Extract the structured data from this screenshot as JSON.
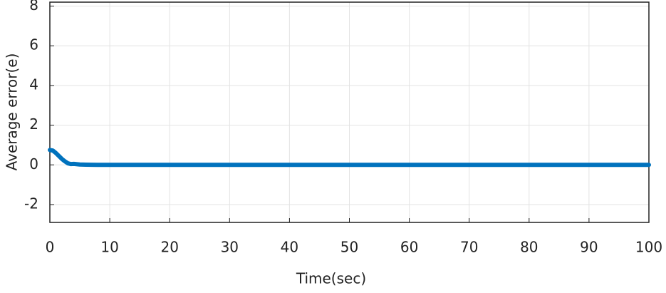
{
  "chart_data": {
    "type": "line",
    "x_label": "Time(sec)",
    "y_label": "Average error(e)",
    "x": [
      0,
      0.5,
      1,
      1.5,
      2,
      2.5,
      3,
      3.5,
      4,
      5,
      6,
      8,
      10,
      100
    ],
    "series": [
      {
        "color": "#0072bd",
        "values": [
          0.75,
          0.72,
          0.6,
          0.45,
          0.3,
          0.18,
          0.08,
          0.04,
          0.05,
          0.02,
          0.01,
          0,
          0,
          0
        ]
      }
    ],
    "xlim": [
      0,
      100
    ],
    "xticks": [
      0,
      10,
      20,
      30,
      40,
      50,
      60,
      70,
      80,
      90,
      100
    ],
    "ylim": [
      -2.9,
      8.2
    ],
    "yticks": [
      -2,
      0,
      2,
      4,
      6,
      8
    ],
    "grid": true
  }
}
